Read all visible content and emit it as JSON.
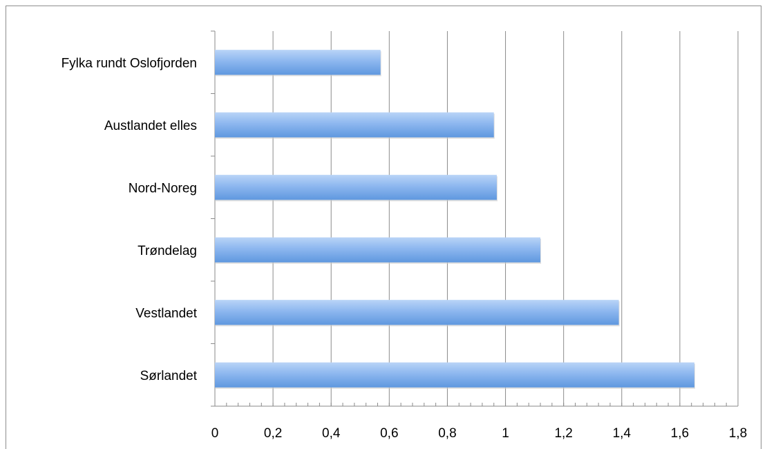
{
  "chart_data": {
    "type": "bar",
    "orientation": "horizontal",
    "categories": [
      "Fylka rundt Oslofjorden",
      "Austlandet elles",
      "Nord-Noreg",
      "Trøndelag",
      "Vestlandet",
      "Sørlandet "
    ],
    "values": [
      0.57,
      0.96,
      0.97,
      1.12,
      1.39,
      1.65
    ],
    "x_tick_labels": [
      "0",
      "0,2",
      "0,4",
      "0,6",
      "0,8",
      "1",
      "1,2",
      "1,4",
      "1,6",
      "1,8"
    ],
    "x_ticks": [
      0,
      0.2,
      0.4,
      0.6,
      0.8,
      1.0,
      1.2,
      1.4,
      1.6,
      1.8
    ],
    "xlim": [
      0,
      1.8
    ],
    "title": "",
    "xlabel": "",
    "ylabel": "",
    "grid": "vertical",
    "legend": "none",
    "colors": {
      "bar_top": "#b9d4f7",
      "bar_mid": "#8db7ef",
      "bar_bottom": "#5f98df",
      "grid": "#8a8a8a",
      "axis": "#8a8a8a"
    }
  }
}
